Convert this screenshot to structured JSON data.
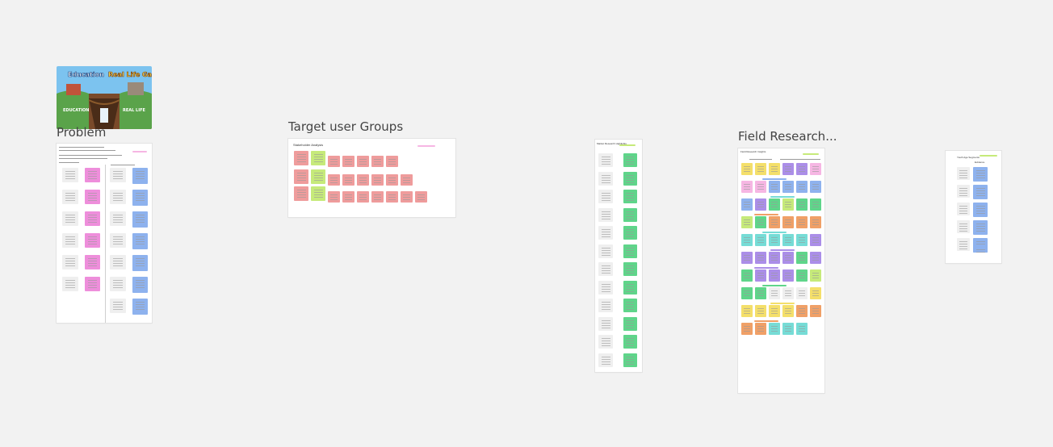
{
  "canvas": {
    "background": "#f2f2f2"
  },
  "frames": {
    "problem": {
      "title": "Problem"
    },
    "target": {
      "title": "Target user Groups",
      "header": "Stakeholder Analysis"
    },
    "field": {
      "title": "Field Research...",
      "header": "Field Research Insights"
    },
    "mini": {
      "header": "Market Research Highlights"
    },
    "small": {
      "col1": "Youth Age Segments",
      "col2": "Evidence"
    }
  },
  "image_card": {
    "title_left": "Education",
    "title_right": "Real Life Gap",
    "label_left": "EDUCATION",
    "label_right": "REAL LIFE"
  },
  "colors": {
    "pink": "#ee8edb",
    "blue": "#8eb2ee",
    "green": "#5fd58a",
    "yellow": "#f4df6a",
    "orange": "#f0a067",
    "purple": "#ab8ee8",
    "teal": "#76dcd6",
    "red": "#ef9c9c"
  }
}
